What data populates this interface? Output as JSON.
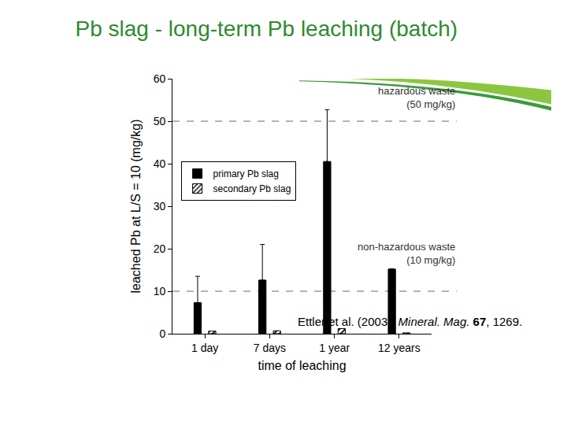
{
  "chart_data": {
    "type": "bar",
    "title": "Pb slag - long-term Pb leaching (batch)",
    "categories": [
      "1 day",
      "7 days",
      "1 year",
      "12 years"
    ],
    "series": [
      {
        "name": "primary Pb slag",
        "color": "#000000",
        "values": [
          7.3,
          12.6,
          40.5,
          15.2
        ],
        "errors": [
          6.2,
          8.4,
          12.2,
          null
        ]
      },
      {
        "name": "secondary Pb slag",
        "color": "#000000",
        "marker": "hatched",
        "values": [
          0.6,
          0.7,
          1.2,
          0.2
        ]
      }
    ],
    "x_label": "time of leaching",
    "y_label": "leached Pb at L/S = 10 (mg/kg)",
    "ylim": [
      0,
      60
    ],
    "yticks": [
      0,
      10,
      20,
      30,
      40,
      50,
      60
    ],
    "grid": false,
    "legend": "upper left",
    "reference_lines": [
      {
        "value": 50,
        "label": [
          "hazardous waste",
          "(50 mg/kg)"
        ],
        "line_style": "dashed"
      },
      {
        "value": 10,
        "label": [
          "non-hazardous waste",
          "(10 mg/kg)"
        ],
        "line_style": "dashed"
      }
    ],
    "source": [
      "Ettler et al. (2003): ",
      "Mineral. Mag.",
      " 67",
      ", 1269."
    ]
  }
}
